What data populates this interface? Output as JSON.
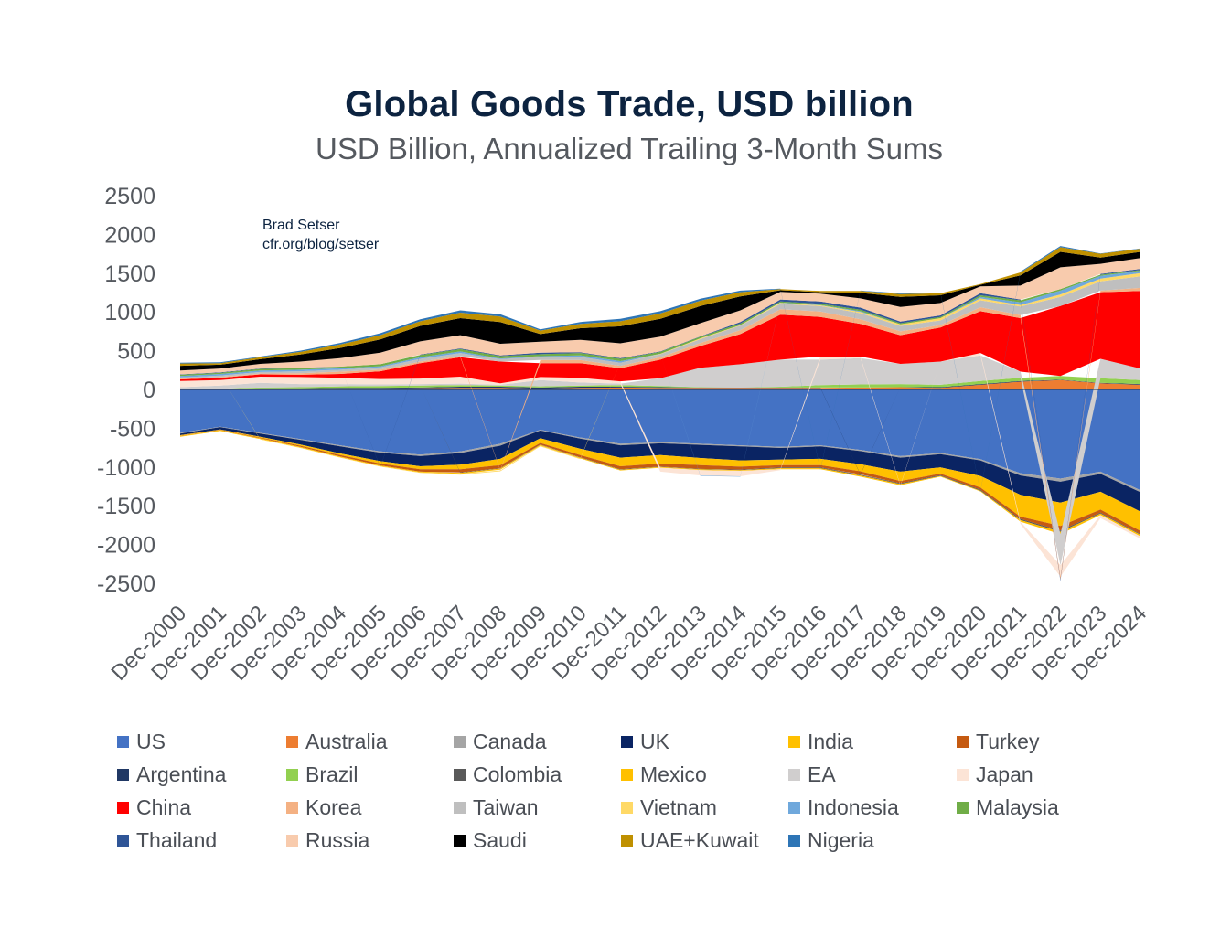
{
  "credit": {
    "author": "Brad Setser",
    "url": "cfr.org/blog/setser"
  },
  "chart_data": {
    "type": "area",
    "title": "Global Goods Trade, USD billion",
    "subtitle": "USD Billion, Annualized Trailing 3-Month Sums",
    "xlabel": "",
    "ylabel": "",
    "ylim": [
      -2500,
      2500
    ],
    "yticks": [
      2500,
      2000,
      1500,
      1000,
      500,
      0,
      -500,
      -1000,
      -1500,
      -2000,
      -2500
    ],
    "x": [
      "Dec-2000",
      "Dec-2001",
      "Dec-2002",
      "Dec-2003",
      "Dec-2004",
      "Dec-2005",
      "Dec-2006",
      "Dec-2007",
      "Dec-2008",
      "Dec-2009",
      "Dec-2010",
      "Dec-2011",
      "Dec-2012",
      "Dec-2013",
      "Dec-2014",
      "Dec-2015",
      "Dec-2016",
      "Dec-2017",
      "Dec-2018",
      "Dec-2019",
      "Dec-2020",
      "Dec-2021",
      "Dec-2022",
      "Dec-2023",
      "Dec-2024"
    ],
    "series": [
      {
        "name": "US",
        "color": "#4472c4",
        "values": [
          -560,
          -480,
          -560,
          -640,
          -720,
          -800,
          -840,
          -800,
          -700,
          -520,
          -620,
          -700,
          -680,
          -700,
          -720,
          -740,
          -720,
          -780,
          -860,
          -820,
          -900,
          -1080,
          -1150,
          -1060,
          -1300
        ]
      },
      {
        "name": "Australia",
        "color": "#ed7d31",
        "values": [
          0,
          0,
          5,
          5,
          10,
          10,
          15,
          20,
          20,
          10,
          20,
          25,
          20,
          20,
          20,
          20,
          20,
          25,
          30,
          20,
          60,
          100,
          120,
          80,
          60
        ]
      },
      {
        "name": "Canada",
        "color": "#a5a5a5",
        "values": [
          -10,
          -5,
          -10,
          -10,
          -15,
          -15,
          -20,
          -20,
          -25,
          -10,
          -15,
          -20,
          -15,
          -15,
          -15,
          -15,
          -15,
          -15,
          -20,
          -15,
          -15,
          -30,
          -40,
          -30,
          -25
        ]
      },
      {
        "name": "UK",
        "color": "#0a2463",
        "values": [
          -20,
          -30,
          -40,
          -60,
          -90,
          -110,
          -130,
          -150,
          -170,
          -100,
          -130,
          -160,
          -150,
          -170,
          -180,
          -150,
          -160,
          -170,
          -180,
          -170,
          -200,
          -250,
          -270,
          -230,
          -250
        ]
      },
      {
        "name": "India",
        "color": "#ffc000",
        "values": [
          -5,
          -5,
          -10,
          -15,
          -20,
          -30,
          -40,
          -60,
          -80,
          -60,
          -80,
          -110,
          -110,
          -90,
          -80,
          -70,
          -80,
          -90,
          -120,
          -80,
          -150,
          -280,
          -300,
          -230,
          -250
        ]
      },
      {
        "name": "Turkey",
        "color": "#c55a11",
        "values": [
          -5,
          -5,
          -10,
          -15,
          -20,
          -25,
          -30,
          -40,
          -40,
          -20,
          -30,
          -40,
          -40,
          -50,
          -40,
          -30,
          -30,
          -40,
          -30,
          -20,
          -30,
          -30,
          -60,
          -40,
          -40
        ]
      },
      {
        "name": "Argentina",
        "color": "#203864",
        "values": [
          5,
          5,
          10,
          10,
          10,
          10,
          10,
          15,
          15,
          15,
          15,
          10,
          10,
          5,
          5,
          5,
          5,
          -5,
          0,
          10,
          10,
          10,
          5,
          5,
          10
        ]
      },
      {
        "name": "Brazil",
        "color": "#92d050",
        "values": [
          5,
          5,
          10,
          15,
          20,
          25,
          25,
          20,
          15,
          15,
          15,
          20,
          15,
          5,
          0,
          10,
          30,
          40,
          40,
          30,
          40,
          40,
          50,
          60,
          50
        ]
      },
      {
        "name": "Colombia",
        "color": "#595959",
        "values": [
          0,
          0,
          0,
          0,
          0,
          0,
          0,
          -5,
          -5,
          -5,
          -5,
          -5,
          -5,
          -5,
          -5,
          -10,
          -10,
          -10,
          -10,
          -10,
          -10,
          -15,
          -15,
          -10,
          -10
        ]
      },
      {
        "name": "Mexico",
        "color": "#ffc000",
        "values": [
          -10,
          -10,
          -10,
          -10,
          -10,
          -10,
          -10,
          -15,
          -15,
          -10,
          -10,
          -10,
          -10,
          -10,
          -10,
          -15,
          -15,
          -15,
          -15,
          -10,
          -10,
          -20,
          -30,
          -20,
          -20
        ]
      },
      {
        "name": "EA",
        "color": "#d0cece",
        "values": [
          20,
          40,
          60,
          40,
          30,
          20,
          20,
          20,
          10,
          80,
          40,
          20,
          100,
          250,
          300,
          350,
          330,
          340,
          260,
          300,
          330,
          80,
          -400,
          250,
          150
        ]
      },
      {
        "name": "Japan",
        "color": "#fce4d6",
        "values": [
          80,
          70,
          80,
          90,
          80,
          70,
          70,
          90,
          20,
          40,
          60,
          30,
          -50,
          -70,
          -70,
          -10,
          40,
          20,
          -10,
          0,
          30,
          -30,
          -150,
          -40,
          -30
        ]
      },
      {
        "name": "China",
        "color": "#ff0000",
        "values": [
          20,
          30,
          30,
          30,
          50,
          100,
          200,
          250,
          280,
          180,
          190,
          170,
          240,
          280,
          390,
          580,
          510,
          420,
          370,
          440,
          540,
          690,
          900,
          860,
          1000
        ]
      },
      {
        "name": "Korea",
        "color": "#f4b183",
        "values": [
          10,
          10,
          10,
          20,
          30,
          20,
          20,
          15,
          -10,
          40,
          40,
          30,
          30,
          40,
          50,
          70,
          70,
          60,
          50,
          30,
          50,
          40,
          -40,
          20,
          40
        ]
      },
      {
        "name": "Taiwan",
        "color": "#bfbfbf",
        "values": [
          15,
          20,
          20,
          25,
          25,
          30,
          35,
          40,
          30,
          40,
          40,
          40,
          40,
          50,
          60,
          70,
          70,
          80,
          70,
          60,
          90,
          110,
          120,
          120,
          150
        ]
      },
      {
        "name": "Vietnam",
        "color": "#ffd966",
        "values": [
          0,
          0,
          -5,
          -5,
          -5,
          -5,
          -5,
          -10,
          -10,
          -10,
          -10,
          0,
          5,
          10,
          5,
          10,
          10,
          15,
          20,
          30,
          25,
          20,
          30,
          35,
          40
        ]
      },
      {
        "name": "Indonesia",
        "color": "#6fa8dc",
        "values": [
          20,
          20,
          20,
          20,
          20,
          15,
          20,
          20,
          10,
          10,
          20,
          20,
          0,
          -5,
          -5,
          5,
          5,
          10,
          0,
          0,
          20,
          35,
          50,
          35,
          30
        ]
      },
      {
        "name": "Malaysia",
        "color": "#70ad47",
        "values": [
          15,
          15,
          20,
          20,
          20,
          25,
          30,
          30,
          30,
          25,
          30,
          30,
          25,
          20,
          20,
          15,
          15,
          20,
          15,
          15,
          20,
          25,
          20,
          15,
          10
        ]
      },
      {
        "name": "Thailand",
        "color": "#2f5597",
        "values": [
          5,
          5,
          5,
          5,
          0,
          -5,
          5,
          10,
          10,
          20,
          10,
          10,
          5,
          5,
          20,
          25,
          30,
          25,
          20,
          20,
          25,
          10,
          -15,
          10,
          15
        ]
      },
      {
        "name": "Russia",
        "color": "#f8cbad",
        "values": [
          50,
          50,
          60,
          80,
          110,
          150,
          170,
          170,
          150,
          140,
          160,
          190,
          190,
          170,
          150,
          100,
          100,
          120,
          190,
          160,
          90,
          180,
          280,
          130,
          140
        ]
      },
      {
        "name": "Saudi",
        "color": "#000000",
        "values": [
          60,
          50,
          60,
          90,
          130,
          170,
          200,
          220,
          280,
          100,
          150,
          220,
          230,
          220,
          180,
          20,
          20,
          70,
          130,
          100,
          20,
          130,
          200,
          80,
          80
        ]
      },
      {
        "name": "UAE+Kuwait",
        "color": "#bf9000",
        "values": [
          30,
          20,
          25,
          35,
          45,
          55,
          60,
          70,
          70,
          45,
          55,
          65,
          70,
          70,
          55,
          15,
          15,
          25,
          35,
          25,
          10,
          40,
          60,
          50,
          40
        ]
      },
      {
        "name": "Nigeria",
        "color": "#2e75b6",
        "values": [
          10,
          10,
          10,
          15,
          20,
          25,
          25,
          30,
          30,
          15,
          25,
          30,
          30,
          25,
          20,
          5,
          -5,
          5,
          10,
          10,
          -5,
          10,
          15,
          5,
          5
        ]
      }
    ]
  },
  "legend": [
    {
      "label": "US",
      "color": "#4472c4"
    },
    {
      "label": "Australia",
      "color": "#ed7d31"
    },
    {
      "label": "Canada",
      "color": "#a5a5a5"
    },
    {
      "label": "UK",
      "color": "#0a2463"
    },
    {
      "label": "India",
      "color": "#ffc000"
    },
    {
      "label": "Turkey",
      "color": "#c55a11"
    },
    {
      "label": "Argentina",
      "color": "#203864"
    },
    {
      "label": "Brazil",
      "color": "#92d050"
    },
    {
      "label": "Colombia",
      "color": "#595959"
    },
    {
      "label": "Mexico",
      "color": "#ffc000"
    },
    {
      "label": "EA",
      "color": "#d0cece"
    },
    {
      "label": "Japan",
      "color": "#fce4d6"
    },
    {
      "label": "China",
      "color": "#ff0000"
    },
    {
      "label": "Korea",
      "color": "#f4b183"
    },
    {
      "label": "Taiwan",
      "color": "#bfbfbf"
    },
    {
      "label": "Vietnam",
      "color": "#ffd966"
    },
    {
      "label": "Indonesia",
      "color": "#6fa8dc"
    },
    {
      "label": "Malaysia",
      "color": "#70ad47"
    },
    {
      "label": "Thailand",
      "color": "#2f5597"
    },
    {
      "label": "Russia",
      "color": "#f8cbad"
    },
    {
      "label": "Saudi",
      "color": "#000000"
    },
    {
      "label": "UAE+Kuwait",
      "color": "#bf9000"
    },
    {
      "label": "Nigeria",
      "color": "#2e75b6"
    }
  ]
}
